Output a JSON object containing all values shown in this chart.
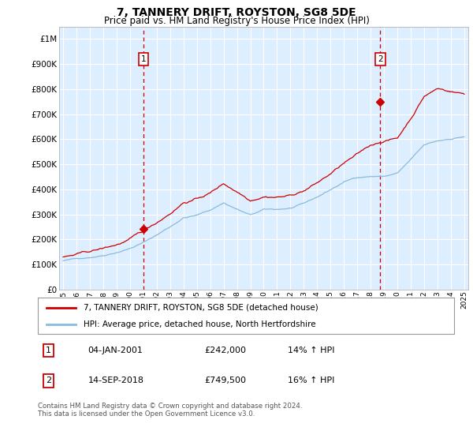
{
  "title": "7, TANNERY DRIFT, ROYSTON, SG8 5DE",
  "subtitle": "Price paid vs. HM Land Registry's House Price Index (HPI)",
  "legend_entry1": "7, TANNERY DRIFT, ROYSTON, SG8 5DE (detached house)",
  "legend_entry2": "HPI: Average price, detached house, North Hertfordshire",
  "annotation1_label": "1",
  "annotation1_date": "04-JAN-2001",
  "annotation1_price": "£242,000",
  "annotation1_hpi": "14% ↑ HPI",
  "annotation1_year": 2001.01,
  "annotation1_value": 242000,
  "annotation2_label": "2",
  "annotation2_date": "14-SEP-2018",
  "annotation2_price": "£749,500",
  "annotation2_hpi": "16% ↑ HPI",
  "annotation2_year": 2018.71,
  "annotation2_value": 749500,
  "footer": "Contains HM Land Registry data © Crown copyright and database right 2024.\nThis data is licensed under the Open Government Licence v3.0.",
  "ylim": [
    0,
    1050000
  ],
  "yticks": [
    0,
    100000,
    200000,
    300000,
    400000,
    500000,
    600000,
    700000,
    800000,
    900000,
    1000000
  ],
  "xlim_start": 1994.7,
  "xlim_end": 2025.3,
  "plot_bg": "#ddeeff",
  "red_color": "#cc0000",
  "blue_color": "#88bbdd",
  "grid_color": "#ffffff",
  "xticks": [
    1995,
    1996,
    1997,
    1998,
    1999,
    2000,
    2001,
    2002,
    2003,
    2004,
    2005,
    2006,
    2007,
    2008,
    2009,
    2010,
    2011,
    2012,
    2013,
    2014,
    2015,
    2016,
    2017,
    2018,
    2019,
    2020,
    2021,
    2022,
    2023,
    2024,
    2025
  ]
}
